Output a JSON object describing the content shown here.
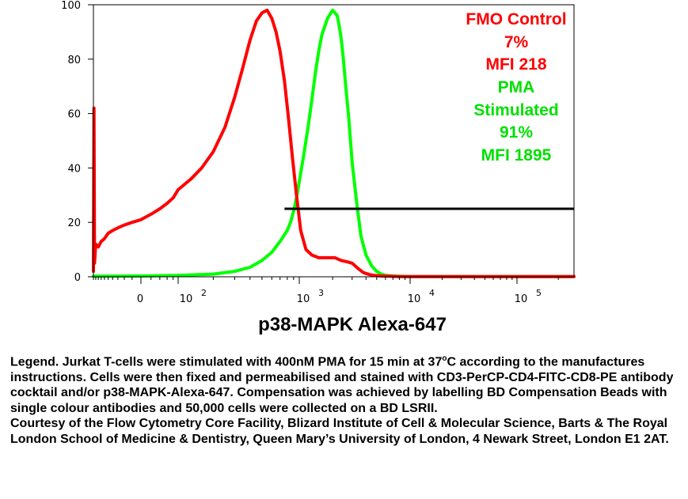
{
  "chart_data": {
    "type": "line",
    "xscale": "biexponential",
    "ylim": [
      0,
      100
    ],
    "xlabel": "p38-MAPK Alexa-647",
    "ylabel": "",
    "title": "",
    "yticks": [
      0,
      20,
      40,
      60,
      80,
      100
    ],
    "xticks": [
      {
        "base": "0",
        "exp": ""
      },
      {
        "base": "10",
        "exp": "2"
      },
      {
        "base": "10",
        "exp": "3"
      },
      {
        "base": "10",
        "exp": "4"
      },
      {
        "base": "10",
        "exp": "5"
      }
    ],
    "series": [
      {
        "color": "#ff0000",
        "x": [
          -200,
          -195,
          -190,
          -180,
          -160,
          -140,
          -120,
          -100,
          -80,
          -60,
          -40,
          -20,
          0,
          20,
          40,
          60,
          80,
          100,
          130,
          160,
          200,
          250,
          300,
          350,
          400,
          450,
          500,
          550,
          600,
          650,
          700,
          760,
          820,
          880,
          950,
          1030,
          1150,
          1300,
          1500,
          1700,
          1900,
          2100,
          2400,
          2700,
          3000,
          3400,
          3800,
          4300,
          4800,
          5500,
          6500,
          8000,
          10000,
          15000,
          25000,
          50000,
          100000,
          260000
        ],
        "values": [
          2,
          62,
          5,
          12,
          11,
          13,
          14,
          16,
          17,
          18,
          19,
          20,
          21,
          23,
          25,
          27,
          29,
          32,
          36,
          40,
          46,
          55,
          66,
          77,
          87,
          94,
          97,
          98,
          95,
          90,
          83,
          72,
          58,
          44,
          30,
          17,
          10,
          8,
          7,
          7,
          7,
          7,
          6,
          5.5,
          5,
          3,
          1.5,
          0.8,
          0.5,
          0.3,
          0.2,
          0.1,
          0.1,
          0.1,
          0.1,
          0.1,
          0.1,
          0.1
        ]
      },
      {
        "color": "#00ff00",
        "x": [
          -200,
          -100,
          0,
          100,
          200,
          300,
          400,
          500,
          600,
          700,
          800,
          850,
          900,
          950,
          1000,
          1100,
          1200,
          1300,
          1400,
          1500,
          1600,
          1800,
          2000,
          2100,
          2200,
          2300,
          2400,
          2500,
          2600,
          2800,
          3000,
          3300,
          3600,
          4000,
          4500,
          5000,
          5500,
          6000,
          7000,
          8000,
          10000,
          15000,
          25000,
          50000,
          100000,
          260000
        ],
        "values": [
          0.2,
          0.2,
          0.3,
          0.5,
          1,
          2,
          3.5,
          6,
          9,
          13,
          17,
          20,
          24,
          29,
          35,
          45,
          55,
          65,
          75,
          83,
          89,
          95,
          98,
          97,
          96,
          92,
          87,
          80,
          72,
          58,
          42,
          27,
          15,
          8,
          4,
          2,
          1,
          0.5,
          0.3,
          0.2,
          0.1,
          0.1,
          0.1,
          0.1,
          0.1,
          0.1
        ]
      }
    ],
    "gate": {
      "x1": 760,
      "x2": 260000,
      "y": 25,
      "color": "#000000"
    }
  },
  "annotations": [
    {
      "text": "FMO Control",
      "color": "#ff0000"
    },
    {
      "text": "7%",
      "color": "#ff0000"
    },
    {
      "text": "MFI 218",
      "color": "#ff0000"
    },
    {
      "text": "PMA",
      "color": "#00e000"
    },
    {
      "text": "Stimulated",
      "color": "#00e000"
    },
    {
      "text": "91%",
      "color": "#00e000"
    },
    {
      "text": "MFI 1895",
      "color": "#00e000"
    }
  ],
  "caption": {
    "legend_part1": "Legend. Jurkat T-cells were stimulated with 400nM PMA for 15 min at 37",
    "legend_sup": "o",
    "legend_part2": "C according to the manufactures instructions. Cells were then fixed and permeabilised and stained with CD3-PerCP-CD4-FITC-CD8-PE antibody cocktail and/or p38-MAPK-Alexa-647. Compensation was achieved by labelling BD Compensation Beads with single colour antibodies and 50,000 cells were collected on a BD LSRII.",
    "courtesy": "Courtesy of the Flow Cytometry Core Facility, Blizard Institute of Cell & Molecular Science, Barts & The Royal London School of Medicine & Dentistry, Queen Mary’s University of London, 4 Newark Street, London E1 2AT."
  }
}
